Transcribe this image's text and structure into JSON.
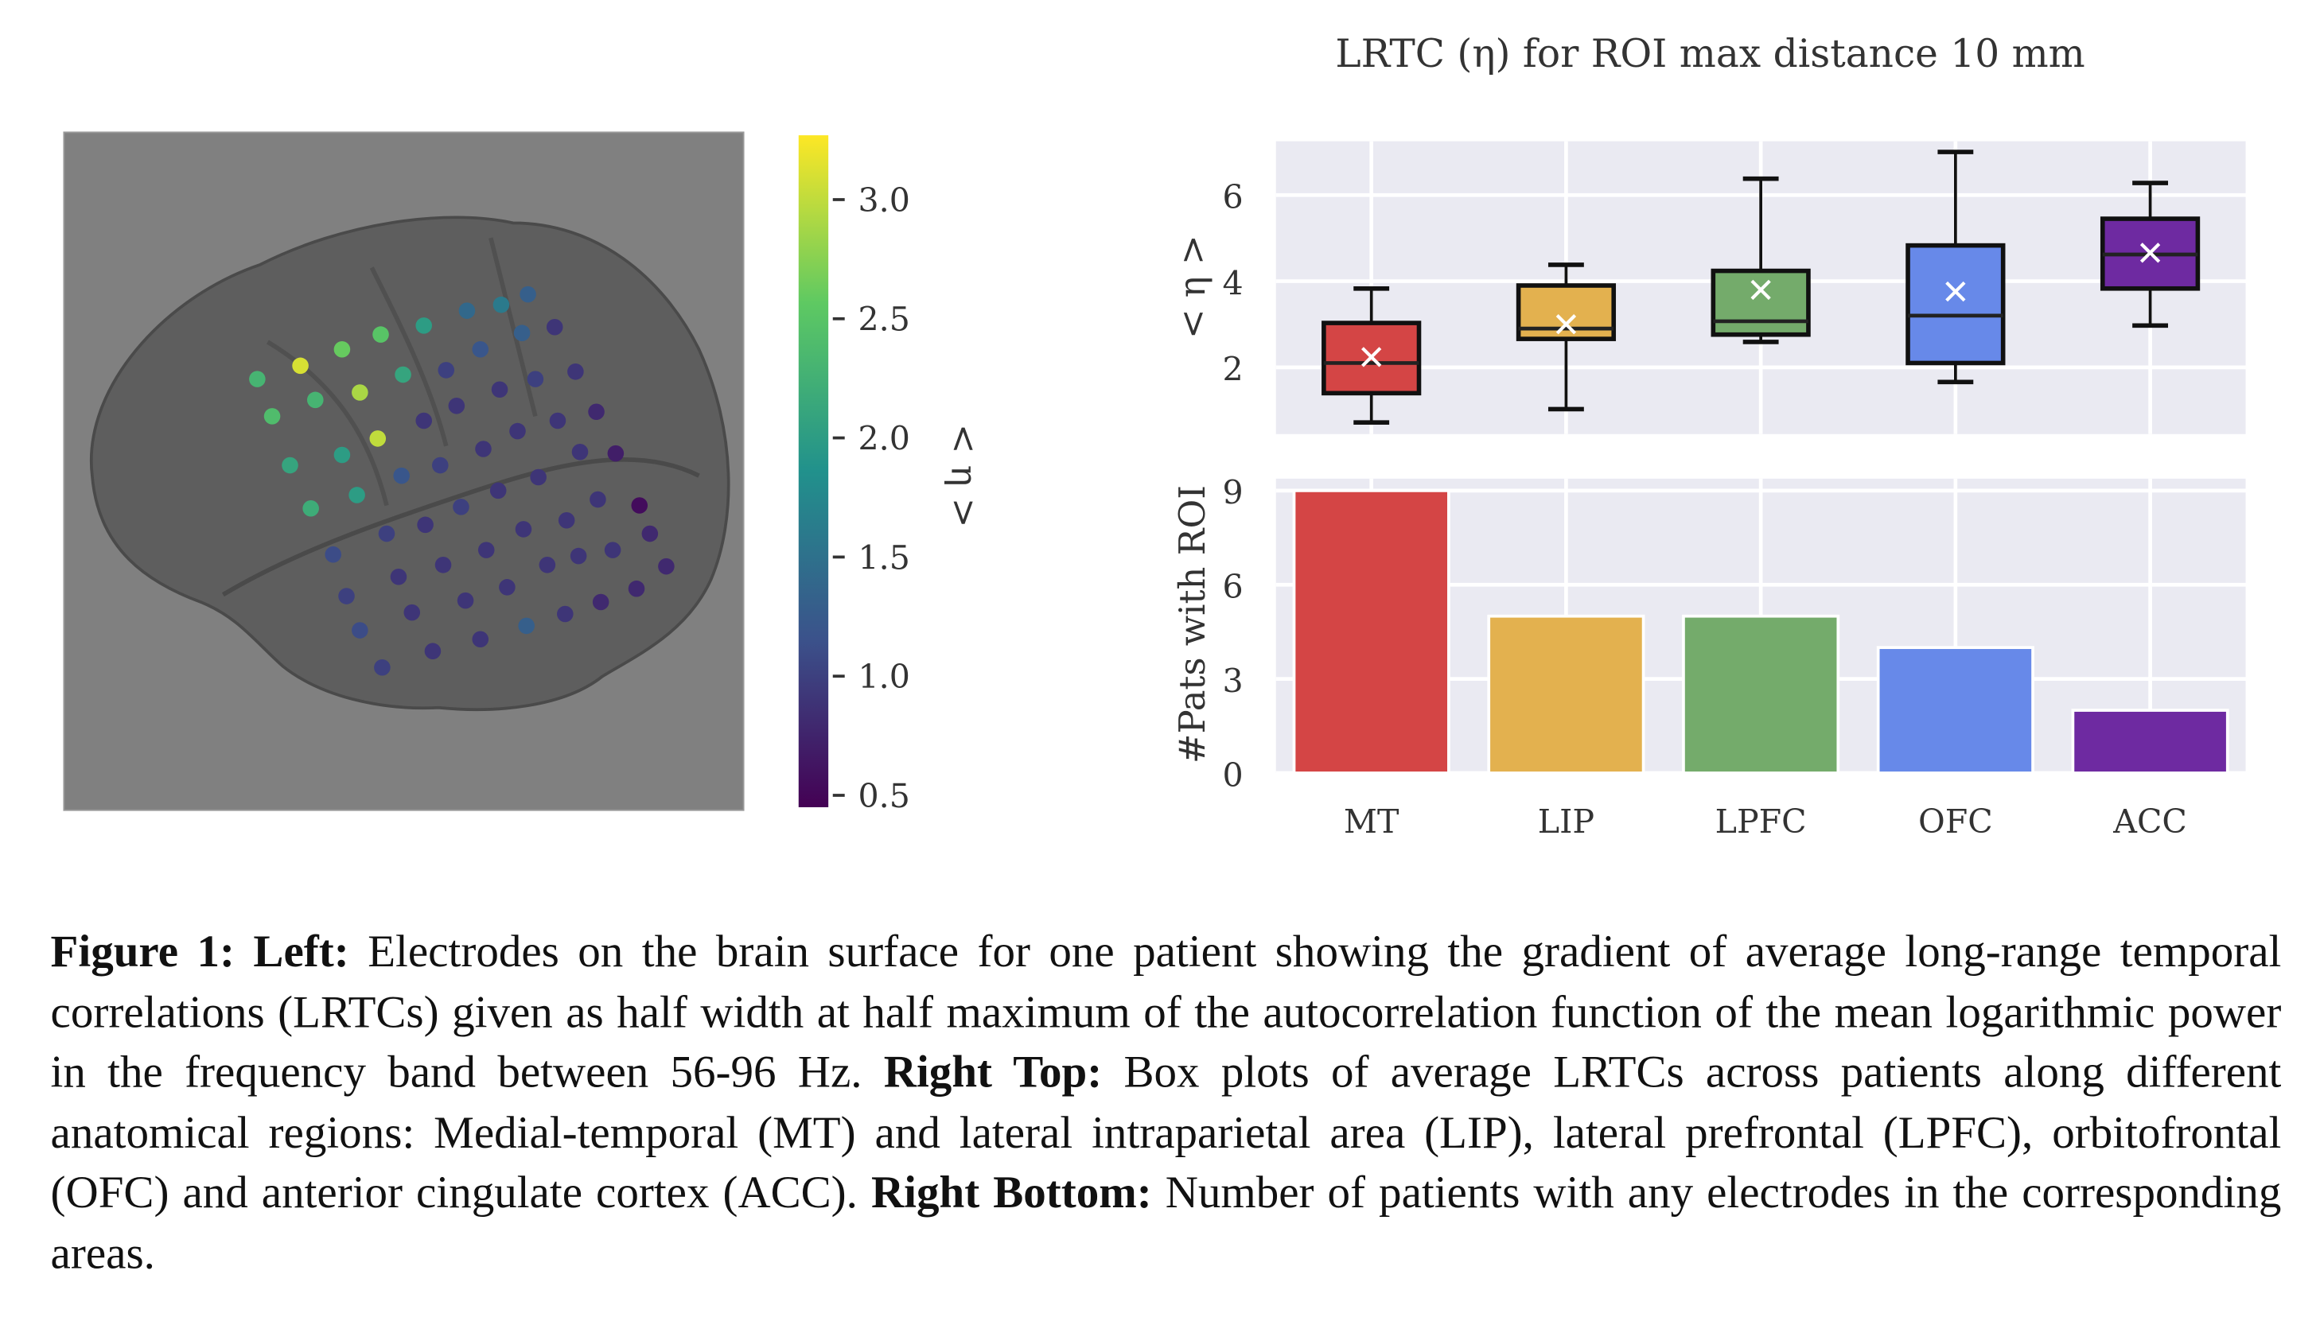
{
  "brain_panel": {
    "colorbar": {
      "label": "< η >",
      "ticks": [
        "3.0",
        "2.5",
        "2.0",
        "1.5",
        "1.0",
        "0.5"
      ],
      "tick_values": [
        3.0,
        2.5,
        2.0,
        1.5,
        1.0,
        0.5
      ],
      "range": [
        0.45,
        3.27
      ],
      "colormap": "viridis"
    },
    "background_color": "#808080"
  },
  "chart_data": [
    {
      "type": "box",
      "title": "LRTC (η) for ROI max distance 10 mm",
      "ylabel": "< η >",
      "categories": [
        "MT",
        "LIP",
        "LPFC",
        "OFC",
        "ACC"
      ],
      "yticks": [
        2,
        4,
        6
      ],
      "ylim": [
        0.45,
        7.25
      ],
      "grid": true,
      "colors": [
        "#d44545",
        "#e3b14f",
        "#74ab6b",
        "#6789e9",
        "#6e2aa1"
      ],
      "boxes": [
        {
          "whisker_low": 0.72,
          "q1": 1.4,
          "median": 2.1,
          "q3": 3.03,
          "whisker_high": 3.83,
          "mean": 2.24
        },
        {
          "whisker_low": 1.03,
          "q1": 2.66,
          "median": 2.9,
          "q3": 3.9,
          "whisker_high": 4.38,
          "mean": 3.0
        },
        {
          "whisker_low": 2.59,
          "q1": 2.76,
          "median": 3.07,
          "q3": 4.24,
          "whisker_high": 6.38,
          "mean": 3.8
        },
        {
          "whisker_low": 1.66,
          "q1": 2.1,
          "median": 3.2,
          "q3": 4.83,
          "whisker_high": 7.0,
          "mean": 3.76
        },
        {
          "whisker_low": 2.97,
          "q1": 3.83,
          "median": 4.62,
          "q3": 5.45,
          "whisker_high": 6.28,
          "mean": 4.66
        }
      ]
    },
    {
      "type": "bar",
      "ylabel": "#Pats with ROI",
      "categories": [
        "MT",
        "LIP",
        "LPFC",
        "OFC",
        "ACC"
      ],
      "values": [
        9,
        5,
        5,
        4,
        2
      ],
      "yticks": [
        0,
        3,
        6,
        9
      ],
      "ylim": [
        0,
        9.38
      ],
      "grid": true,
      "colors": [
        "#d44545",
        "#e3b14f",
        "#74ab6b",
        "#6789e9",
        "#6e2aa1"
      ]
    }
  ],
  "caption": {
    "label": "Figure 1:",
    "left_head": "Left:",
    "left_text": "Electrodes on the brain surface for one patient showing the gradient of average long-range temporal correlations (LRTCs) given as half width at half maximum of the autocorrelation function of the mean logarithmic power in the frequency band between 56-96 Hz.",
    "right_top_head": "Right Top:",
    "right_top_text": "Box plots of average LRTCs across patients along different anatomical regions: Medial-temporal (MT) and lateral intraparietal area (LIP), lateral prefrontal (LPFC), orbitofrontal (OFC) and anterior cingulate cortex (ACC).",
    "right_bottom_head": "Right Bottom:",
    "right_bottom_text": "Number of patients with any electrodes in the corresponding areas."
  }
}
